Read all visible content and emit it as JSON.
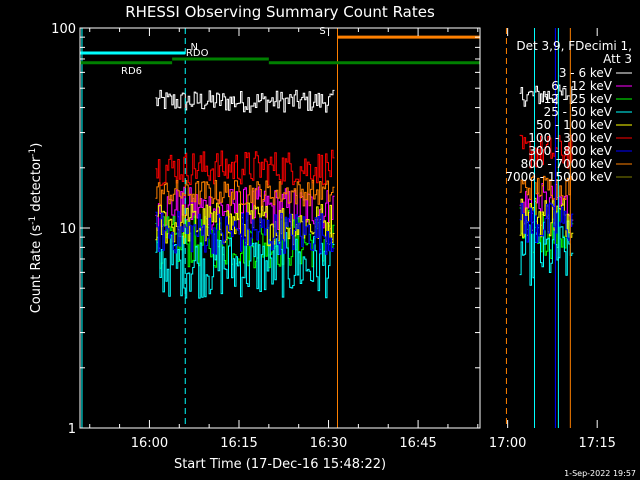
{
  "chart_data": {
    "type": "line",
    "title": "RHESSI Observing Summary Count Rates",
    "xlabel": "Start Time (17-Dec-16 15:48:22)",
    "ylabel_parts": [
      "Count Rate (s",
      "-1",
      " detector",
      "-1",
      ")"
    ],
    "y_scale": "log",
    "ylim": [
      1,
      100
    ],
    "y_ticks": [
      {
        "value": 1,
        "label": "1"
      },
      {
        "value": 10,
        "label": "10"
      },
      {
        "value": 100,
        "label": "100"
      }
    ],
    "xlim_minutes": [
      -11.63,
      55.37
    ],
    "x_ticks": [
      {
        "minute": 0,
        "label": "16:00"
      },
      {
        "minute": 15,
        "label": "16:15"
      },
      {
        "minute": 30,
        "label": "16:30"
      },
      {
        "minute": 45,
        "label": "16:45"
      },
      {
        "minute": 60,
        "label": "17:00"
      },
      {
        "minute": 75,
        "label": "17:15"
      }
    ],
    "legend_header": [
      "Det 3,9, FDecimi 1,",
      "Att 3"
    ],
    "legend_position": "right",
    "series": [
      {
        "name": "3 - 6 keV",
        "color": "#ffffff",
        "segments": [
          {
            "start": 1.0,
            "end": 31.0,
            "level": 43,
            "noise": 0.05
          },
          {
            "start": 62.0,
            "end": 71.0,
            "level": 46,
            "noise": 0.05
          }
        ]
      },
      {
        "name": "6 - 12 keV",
        "color": "#ff00ff",
        "segments": [
          {
            "start": 1.0,
            "end": 31.0,
            "level": 12.5,
            "noise": 0.1
          },
          {
            "start": 62.0,
            "end": 71.0,
            "level": 13,
            "noise": 0.1
          }
        ]
      },
      {
        "name": "12 - 25 keV",
        "color": "#00ff00",
        "segments": [
          {
            "start": 1.0,
            "end": 31.0,
            "level": 8.5,
            "noise": 0.12
          },
          {
            "start": 62.0,
            "end": 71.0,
            "level": 9.5,
            "noise": 0.12
          }
        ]
      },
      {
        "name": "25 - 50 keV",
        "color": "#00ffff",
        "segments": [
          {
            "start": 1.0,
            "end": 31.0,
            "level": 6.5,
            "noise": 0.15
          },
          {
            "start": 62.0,
            "end": 71.0,
            "level": 7.5,
            "noise": 0.15
          }
        ]
      },
      {
        "name": "50 - 100 keV",
        "color": "#ffff00",
        "segments": [
          {
            "start": 1.0,
            "end": 31.0,
            "level": 10.5,
            "noise": 0.1
          },
          {
            "start": 62.0,
            "end": 71.0,
            "level": 11.5,
            "noise": 0.1
          }
        ]
      },
      {
        "name": "100 - 300 keV",
        "color": "#ff0000",
        "segments": [
          {
            "start": 1.0,
            "end": 31.0,
            "level": 20,
            "noise": 0.08
          },
          {
            "start": 62.0,
            "end": 71.0,
            "level": 24,
            "noise": 0.08
          }
        ]
      },
      {
        "name": "300 - 800 keV",
        "color": "#0000ff",
        "segments": [
          {
            "start": 1.0,
            "end": 31.0,
            "level": 9.5,
            "noise": 0.1
          },
          {
            "start": 62.0,
            "end": 71.0,
            "level": 10.5,
            "noise": 0.1
          }
        ]
      },
      {
        "name": "800 - 7000 keV",
        "color": "#ff8000",
        "segments": [
          {
            "start": 1.0,
            "end": 31.0,
            "level": 15,
            "noise": 0.06
          },
          {
            "start": 62.0,
            "end": 71.0,
            "level": 16,
            "noise": 0.06
          }
        ]
      },
      {
        "name": "7000 - 15000 keV",
        "color": "#808000",
        "segments": []
      }
    ],
    "vertical_lines": [
      {
        "minute": -11.3,
        "color": "#00ffff",
        "style": "solid"
      },
      {
        "minute": 6.0,
        "color": "#00ffff",
        "style": "dashed"
      },
      {
        "minute": 31.5,
        "color": "#ff8000",
        "style": "solid"
      },
      {
        "minute": 59.8,
        "color": "#ff8000",
        "style": "dashed"
      },
      {
        "minute": 64.5,
        "color": "#00ffff",
        "style": "solid"
      },
      {
        "minute": 68.0,
        "color": "#0000ff",
        "style": "solid"
      },
      {
        "minute": 68.5,
        "color": "#00ffff",
        "style": "solid"
      },
      {
        "minute": 70.5,
        "color": "#ff8000",
        "style": "solid"
      },
      {
        "minute": 82.3,
        "color": "#00ffff",
        "style": "dashed"
      }
    ],
    "flag_bars": [
      {
        "code": "N",
        "color": "#00ffff",
        "y_value": 75,
        "segments": [
          [
            -11.63,
            6.0
          ],
          [
            64.5,
            82.3
          ]
        ],
        "label_minute": 7.5
      },
      {
        "code": "RD6",
        "color": "#008000",
        "y_value": 67,
        "segments": [
          [
            -11.63,
            3.8
          ],
          [
            20.0,
            61.0
          ],
          [
            64.5,
            82.3
          ]
        ],
        "label_minute": -3.0
      },
      {
        "code": "RDO",
        "color": "#008000",
        "y_value": 70,
        "segments": [
          [
            3.8,
            20.0
          ]
        ],
        "label_minute": 8.0
      },
      {
        "code": "S",
        "color": "#ff8000",
        "y_value": 90,
        "segments": [
          [
            31.5,
            59.8
          ]
        ],
        "label_minute": 29.0
      }
    ]
  },
  "footer": {
    "timestamp": "1-Sep-2022 19:57"
  }
}
